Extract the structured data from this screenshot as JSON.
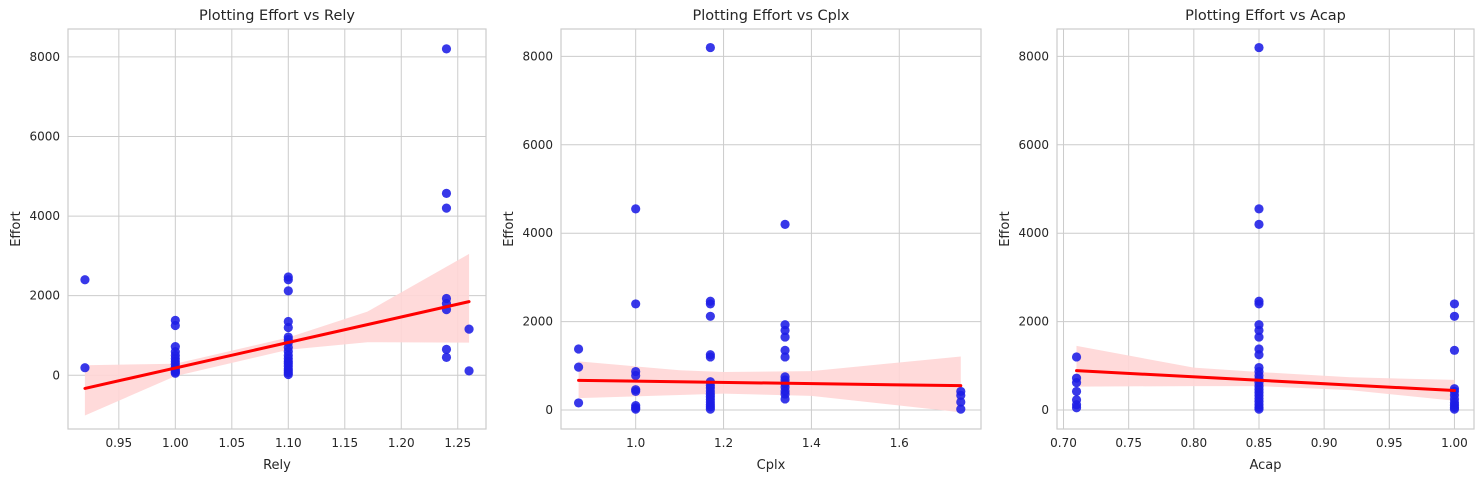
{
  "chart_data": [
    {
      "type": "scatter",
      "title": "Plotting Effort vs Rely",
      "xlabel": "Rely",
      "ylabel": "Effort",
      "xlim": [
        0.905,
        1.275
      ],
      "ylim": [
        -1350,
        8700
      ],
      "xticks": [
        0.95,
        1.0,
        1.05,
        1.1,
        1.15,
        1.2,
        1.25
      ],
      "xtick_labels": [
        "0.95",
        "1.00",
        "1.05",
        "1.10",
        "1.15",
        "1.20",
        "1.25"
      ],
      "yticks": [
        0,
        2000,
        4000,
        6000,
        8000
      ],
      "ytick_labels": [
        "0",
        "2000",
        "4000",
        "6000",
        "8000"
      ],
      "grid": true,
      "point_color": "#1c1ce6",
      "line_color": "#ff0000",
      "band_color": "#ffd6d6",
      "points": [
        [
          0.92,
          2400
        ],
        [
          0.92,
          190
        ],
        [
          1.0,
          1380
        ],
        [
          1.0,
          1250
        ],
        [
          1.0,
          720
        ],
        [
          1.0,
          590
        ],
        [
          1.0,
          500
        ],
        [
          1.0,
          420
        ],
        [
          1.0,
          350
        ],
        [
          1.0,
          280
        ],
        [
          1.0,
          200
        ],
        [
          1.0,
          150
        ],
        [
          1.0,
          110
        ],
        [
          1.0,
          80
        ],
        [
          1.0,
          50
        ],
        [
          1.1,
          2470
        ],
        [
          1.1,
          2400
        ],
        [
          1.1,
          2120
        ],
        [
          1.1,
          1350
        ],
        [
          1.1,
          1200
        ],
        [
          1.1,
          960
        ],
        [
          1.1,
          900
        ],
        [
          1.1,
          820
        ],
        [
          1.1,
          700
        ],
        [
          1.1,
          600
        ],
        [
          1.1,
          500
        ],
        [
          1.1,
          420
        ],
        [
          1.1,
          350
        ],
        [
          1.1,
          300
        ],
        [
          1.1,
          230
        ],
        [
          1.1,
          160
        ],
        [
          1.1,
          110
        ],
        [
          1.1,
          60
        ],
        [
          1.1,
          20
        ],
        [
          1.24,
          8200
        ],
        [
          1.24,
          4570
        ],
        [
          1.24,
          4200
        ],
        [
          1.24,
          1930
        ],
        [
          1.24,
          1800
        ],
        [
          1.24,
          1650
        ],
        [
          1.24,
          650
        ],
        [
          1.24,
          450
        ],
        [
          1.26,
          1160
        ],
        [
          1.26,
          110
        ]
      ],
      "regression": {
        "x": [
          0.92,
          1.26
        ],
        "y": [
          -330,
          1850
        ]
      },
      "band": {
        "x": [
          0.92,
          1.0,
          1.1,
          1.17,
          1.26
        ],
        "lower": [
          -1010,
          -20,
          640,
          830,
          820
        ],
        "upper": [
          250,
          290,
          950,
          1600,
          3050
        ]
      }
    },
    {
      "type": "scatter",
      "title": "Plotting Effort vs Cplx",
      "xlabel": "Cplx",
      "ylabel": "Effort",
      "xlim": [
        0.83,
        1.786
      ],
      "ylim": [
        -430,
        8620
      ],
      "xticks": [
        1.0,
        1.2,
        1.4,
        1.6
      ],
      "xtick_labels": [
        "1.0",
        "1.2",
        "1.4",
        "1.6"
      ],
      "yticks": [
        0,
        2000,
        4000,
        6000,
        8000
      ],
      "ytick_labels": [
        "0",
        "2000",
        "4000",
        "6000",
        "8000"
      ],
      "grid": true,
      "point_color": "#1c1ce6",
      "line_color": "#ff0000",
      "band_color": "#ffd6d6",
      "points": [
        [
          0.87,
          1380
        ],
        [
          0.87,
          970
        ],
        [
          0.87,
          160
        ],
        [
          1.0,
          4550
        ],
        [
          1.0,
          2400
        ],
        [
          1.0,
          870
        ],
        [
          1.0,
          780
        ],
        [
          1.0,
          460
        ],
        [
          1.0,
          420
        ],
        [
          1.0,
          100
        ],
        [
          1.0,
          50
        ],
        [
          1.0,
          20
        ],
        [
          1.17,
          8200
        ],
        [
          1.17,
          2460
        ],
        [
          1.17,
          2400
        ],
        [
          1.17,
          2120
        ],
        [
          1.17,
          1250
        ],
        [
          1.17,
          1200
        ],
        [
          1.17,
          640
        ],
        [
          1.17,
          560
        ],
        [
          1.17,
          500
        ],
        [
          1.17,
          430
        ],
        [
          1.17,
          360
        ],
        [
          1.17,
          300
        ],
        [
          1.17,
          240
        ],
        [
          1.17,
          180
        ],
        [
          1.17,
          120
        ],
        [
          1.17,
          70
        ],
        [
          1.17,
          20
        ],
        [
          1.34,
          4200
        ],
        [
          1.34,
          1930
        ],
        [
          1.34,
          1800
        ],
        [
          1.34,
          1650
        ],
        [
          1.34,
          1350
        ],
        [
          1.34,
          1200
        ],
        [
          1.34,
          750
        ],
        [
          1.34,
          680
        ],
        [
          1.34,
          600
        ],
        [
          1.34,
          520
        ],
        [
          1.34,
          430
        ],
        [
          1.34,
          360
        ],
        [
          1.34,
          250
        ],
        [
          1.74,
          420
        ],
        [
          1.74,
          330
        ],
        [
          1.74,
          180
        ],
        [
          1.74,
          20
        ]
      ],
      "regression": {
        "x": [
          0.87,
          1.74
        ],
        "y": [
          670,
          550
        ]
      },
      "band": {
        "x": [
          0.87,
          1.1,
          1.2,
          1.4,
          1.74
        ],
        "lower": [
          270,
          340,
          370,
          320,
          -50
        ],
        "upper": [
          1100,
          900,
          860,
          880,
          1210
        ]
      }
    },
    {
      "type": "scatter",
      "title": "Plotting Effort vs Acap",
      "xlabel": "Acap",
      "ylabel": "Effort",
      "xlim": [
        0.695,
        1.015
      ],
      "ylim": [
        -430,
        8620
      ],
      "xticks": [
        0.7,
        0.75,
        0.8,
        0.85,
        0.9,
        0.95,
        1.0
      ],
      "xtick_labels": [
        "0.70",
        "0.75",
        "0.80",
        "0.85",
        "0.90",
        "0.95",
        "1.00"
      ],
      "yticks": [
        0,
        2000,
        4000,
        6000,
        8000
      ],
      "ytick_labels": [
        "0",
        "2000",
        "4000",
        "6000",
        "8000"
      ],
      "grid": true,
      "point_color": "#1c1ce6",
      "line_color": "#ff0000",
      "band_color": "#ffd6d6",
      "points": [
        [
          0.71,
          1200
        ],
        [
          0.71,
          720
        ],
        [
          0.71,
          620
        ],
        [
          0.71,
          420
        ],
        [
          0.71,
          230
        ],
        [
          0.71,
          120
        ],
        [
          0.71,
          50
        ],
        [
          0.85,
          8200
        ],
        [
          0.85,
          4550
        ],
        [
          0.85,
          4200
        ],
        [
          0.85,
          2460
        ],
        [
          0.85,
          2400
        ],
        [
          0.85,
          1930
        ],
        [
          0.85,
          1800
        ],
        [
          0.85,
          1650
        ],
        [
          0.85,
          1380
        ],
        [
          0.85,
          1250
        ],
        [
          0.85,
          960
        ],
        [
          0.85,
          870
        ],
        [
          0.85,
          780
        ],
        [
          0.85,
          700
        ],
        [
          0.85,
          620
        ],
        [
          0.85,
          540
        ],
        [
          0.85,
          470
        ],
        [
          0.85,
          400
        ],
        [
          0.85,
          330
        ],
        [
          0.85,
          260
        ],
        [
          0.85,
          190
        ],
        [
          0.85,
          120
        ],
        [
          0.85,
          60
        ],
        [
          0.85,
          20
        ],
        [
          1.0,
          2400
        ],
        [
          1.0,
          2120
        ],
        [
          1.0,
          1350
        ],
        [
          1.0,
          480
        ],
        [
          1.0,
          420
        ],
        [
          1.0,
          340
        ],
        [
          1.0,
          250
        ],
        [
          1.0,
          170
        ],
        [
          1.0,
          110
        ],
        [
          1.0,
          60
        ],
        [
          1.0,
          20
        ]
      ],
      "regression": {
        "x": [
          0.71,
          1.0
        ],
        "y": [
          890,
          440
        ]
      },
      "band": {
        "x": [
          0.71,
          0.8,
          0.85,
          0.92,
          1.0
        ],
        "lower": [
          530,
          540,
          540,
          450,
          210
        ],
        "upper": [
          1450,
          960,
          860,
          740,
          680
        ]
      }
    }
  ]
}
